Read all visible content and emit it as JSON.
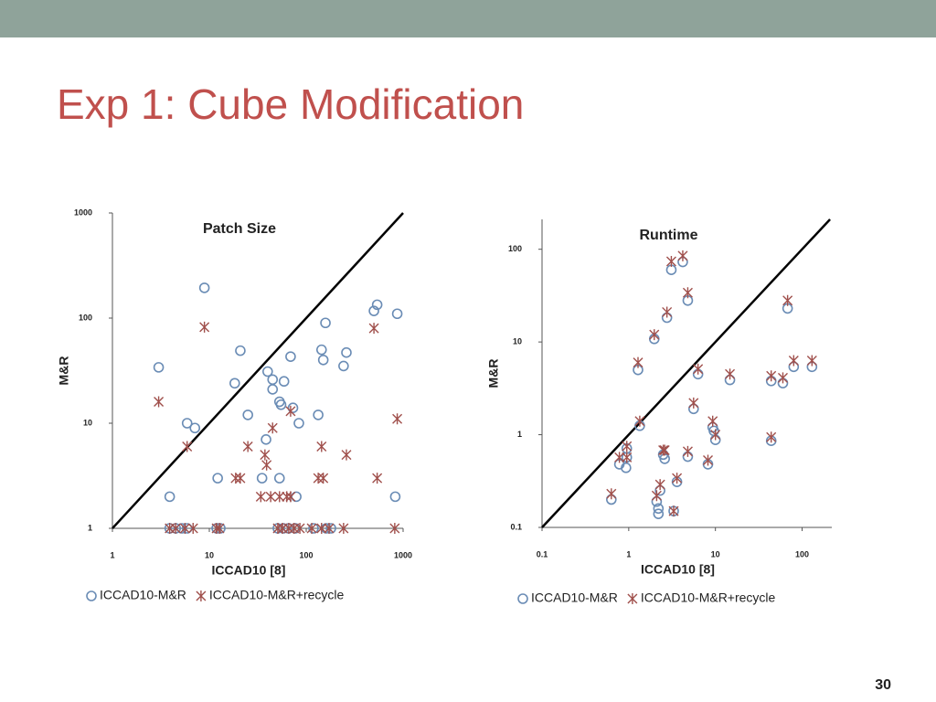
{
  "header": {
    "title": "Exp 1: Cube Modification"
  },
  "page_number": "30",
  "chart_data": [
    {
      "type": "scatter",
      "title": "Patch Size",
      "x_label": "ICCAD10 [8]",
      "y_label": "M&R",
      "log_x": true,
      "log_y": true,
      "xlim": [
        1,
        1000
      ],
      "ylim": [
        1,
        1000
      ],
      "xticks": [
        1,
        10,
        100,
        1000
      ],
      "yticks": [
        1,
        10,
        100,
        1000
      ],
      "series": [
        {
          "name": "ICCAD10-M&R",
          "color": "#6a8cb5",
          "marker": "circle",
          "x": [
            3.0,
            3.9,
            5.9,
            7.1,
            8.9,
            12.2,
            18.3,
            20.9,
            25,
            35,
            38.5,
            40,
            45,
            45,
            53,
            55,
            59,
            69,
            73,
            84,
            53,
            79,
            133,
            144,
            150,
            158,
            243,
            260,
            500,
            540,
            870,
            830,
            3.9,
            4.5,
            5.2,
            5.9,
            11.9,
            13,
            50.9,
            58,
            66,
            77,
            119,
            161,
            180
          ],
          "values": [
            34,
            2,
            10,
            9,
            194,
            3,
            24,
            49,
            12,
            3,
            7,
            31,
            26,
            21,
            16,
            15,
            25,
            43,
            14,
            10,
            3,
            2,
            12,
            50,
            40,
            90,
            35,
            47,
            117,
            134,
            110,
            2,
            1,
            1,
            1,
            1,
            1,
            1,
            1,
            1,
            1,
            1,
            1,
            1,
            1
          ]
        },
        {
          "name": "ICCAD10-M&R+recycle",
          "color": "#a0504c",
          "marker": "cross",
          "x": [
            3.0,
            5.9,
            8.9,
            18.7,
            20.9,
            25,
            37.5,
            39,
            45,
            69,
            34,
            43,
            53,
            63,
            69,
            133,
            150,
            144,
            260,
            500,
            540,
            870,
            3.9,
            4.5,
            5.6,
            6.8,
            11.9,
            12.7,
            50.9,
            57,
            66,
            75,
            86,
            114,
            144,
            172,
            243,
            820
          ],
          "values": [
            16,
            6,
            82,
            3,
            3,
            6,
            5,
            4,
            9,
            13,
            2,
            2,
            2,
            2,
            2,
            3,
            3,
            6,
            5,
            80,
            3,
            11,
            1,
            1,
            1,
            1,
            1,
            1,
            1,
            1,
            1,
            1,
            1,
            1,
            1,
            1,
            1,
            1
          ]
        }
      ]
    },
    {
      "type": "scatter",
      "title": "Runtime",
      "x_label": "ICCAD10 [8]",
      "y_label": "M&R",
      "log_x": true,
      "log_y": true,
      "xlim": [
        0.1,
        220
      ],
      "ylim": [
        0.1,
        210
      ],
      "xticks": [
        0.1,
        1,
        10,
        100
      ],
      "yticks": [
        0.1,
        1,
        10,
        100
      ],
      "series": [
        {
          "name": "ICCAD10-M&R",
          "color": "#6a8cb5",
          "marker": "circle",
          "x": [
            0.63,
            0.78,
            0.95,
            0.93,
            0.95,
            1.34,
            1.28,
            1.97,
            2.76,
            3.1,
            4.2,
            4.8,
            2.1,
            2.2,
            2.2,
            2.3,
            2.5,
            2.6,
            3.3,
            3.6,
            4.8,
            5.6,
            6.3,
            8.2,
            9.3,
            10,
            9.6,
            14.7,
            44,
            44,
            60,
            68,
            80,
            130
          ],
          "values": [
            0.2,
            0.48,
            0.57,
            0.44,
            0.71,
            1.25,
            5.0,
            10.8,
            18.3,
            60,
            73,
            28,
            0.19,
            0.16,
            0.14,
            0.25,
            0.61,
            0.55,
            0.15,
            0.31,
            0.58,
            1.9,
            4.5,
            0.48,
            1.2,
            0.88,
            1.1,
            3.9,
            0.86,
            3.8,
            3.6,
            23,
            5.4,
            5.4
          ]
        },
        {
          "name": "ICCAD10-M&R+recycle",
          "color": "#a0504c",
          "marker": "cross",
          "x": [
            0.63,
            0.78,
            0.95,
            0.95,
            1.34,
            1.28,
            1.97,
            2.76,
            3.1,
            4.2,
            4.8,
            2.1,
            2.3,
            2.5,
            2.6,
            3.3,
            3.6,
            4.8,
            5.6,
            6.3,
            8.2,
            9.3,
            10,
            14.7,
            44,
            44,
            60,
            68,
            80,
            130
          ],
          "values": [
            0.23,
            0.57,
            0.75,
            0.57,
            1.4,
            6.0,
            12,
            21,
            74,
            85,
            34,
            0.22,
            0.29,
            0.68,
            0.68,
            0.15,
            0.34,
            0.66,
            2.2,
            5.1,
            0.53,
            1.4,
            1.0,
            4.5,
            0.94,
            4.3,
            4.1,
            28,
            6.3,
            6.3
          ]
        }
      ]
    }
  ]
}
